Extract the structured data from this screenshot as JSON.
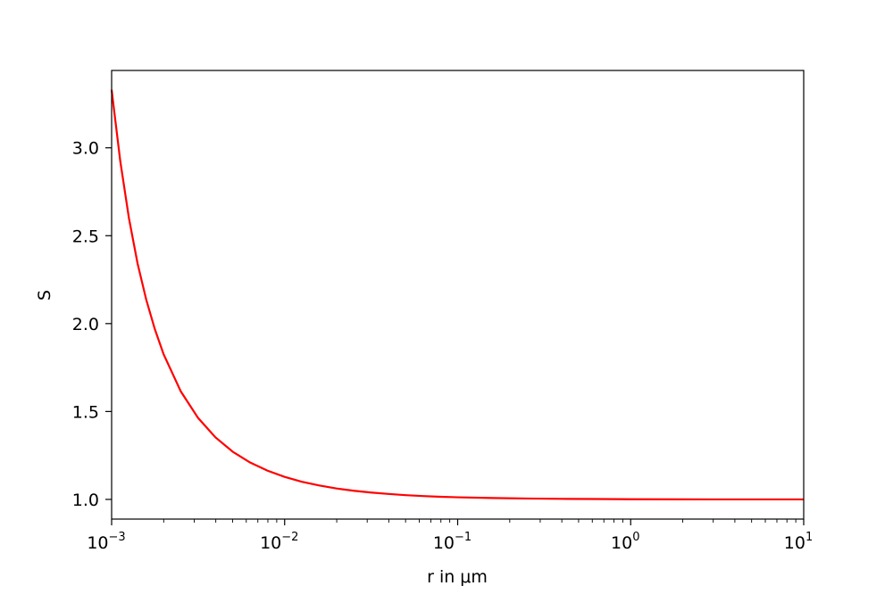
{
  "chart_data": {
    "type": "line",
    "title": "",
    "xlabel": "r in μm",
    "ylabel": "S",
    "xscale": "log",
    "xlim": [
      0.001,
      10
    ],
    "ylim": [
      0.888,
      3.44
    ],
    "grid": false,
    "x_ticks": [
      {
        "value": 0.001,
        "base": "10",
        "exp": "−3"
      },
      {
        "value": 0.01,
        "base": "10",
        "exp": "−2"
      },
      {
        "value": 0.1,
        "base": "10",
        "exp": "−1"
      },
      {
        "value": 1,
        "base": "10",
        "exp": "0"
      },
      {
        "value": 10,
        "base": "10",
        "exp": "1"
      }
    ],
    "y_ticks": [
      {
        "value": 1.0,
        "label": "1.0"
      },
      {
        "value": 1.5,
        "label": "1.5"
      },
      {
        "value": 2.0,
        "label": "2.0"
      },
      {
        "value": 2.5,
        "label": "2.5"
      },
      {
        "value": 3.0,
        "label": "3.0"
      }
    ],
    "series": [
      {
        "color": "#ff0000",
        "x": [
          0.001,
          0.001122,
          0.001259,
          0.001413,
          0.001585,
          0.001778,
          0.001995,
          0.002512,
          0.003162,
          0.003981,
          0.005012,
          0.00631,
          0.007943,
          0.01,
          0.01259,
          0.01585,
          0.01995,
          0.02512,
          0.03162,
          0.03981,
          0.05012,
          0.0631,
          0.07943,
          0.1,
          0.1585,
          0.2512,
          0.3981,
          0.631,
          1,
          3.162,
          10
        ],
        "y": [
          3.33,
          2.924,
          2.6,
          2.341,
          2.136,
          1.968,
          1.827,
          1.614,
          1.463,
          1.353,
          1.271,
          1.21,
          1.164,
          1.128,
          1.1,
          1.079,
          1.062,
          1.049,
          1.039,
          1.031,
          1.024,
          1.019,
          1.015,
          1.012,
          1.008,
          1.005,
          1.003,
          1.002,
          1.001,
          1.0,
          1.0
        ]
      }
    ]
  }
}
